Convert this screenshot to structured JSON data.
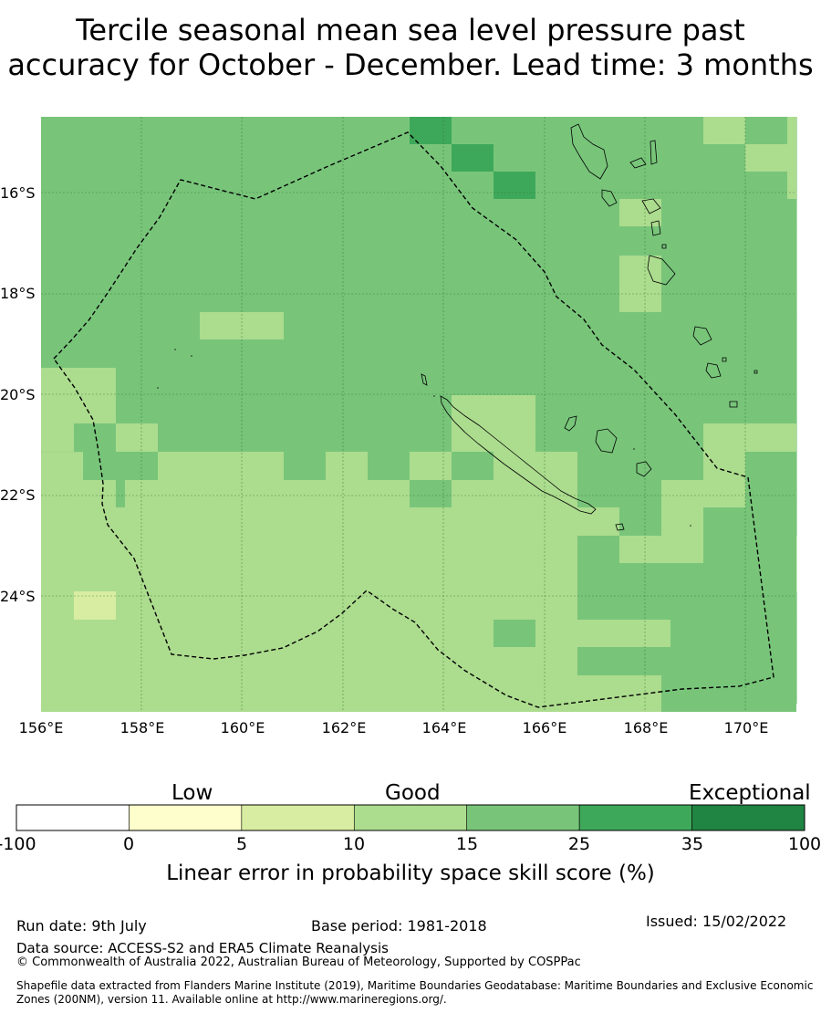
{
  "title": {
    "line1": "Tercile seasonal mean sea level pressure past",
    "line2": "accuracy for October - December. Lead time: 3 months"
  },
  "map": {
    "lat_labels": [
      "16°S",
      "18°S",
      "20°S",
      "22°S",
      "24°S"
    ],
    "lon_labels": [
      "156°E",
      "158°E",
      "160°E",
      "162°E",
      "164°E",
      "166°E",
      "168°E",
      "170°E"
    ]
  },
  "colorbar": {
    "categories": [
      "Low",
      "Good",
      "Exceptional"
    ],
    "ticks": [
      "-100",
      "0",
      "5",
      "10",
      "15",
      "25",
      "35",
      "100"
    ],
    "colors": [
      "#ffffff",
      "#fefecc",
      "#d8eda1",
      "#acdc8e",
      "#78c57a",
      "#3ea85a",
      "#208442"
    ],
    "title": "Linear error in probability space skill score (%)"
  },
  "footer": {
    "run_date": "Run date: 9th July",
    "base_period": "Base period: 1981-2018",
    "issued": "Issued: 15/02/2022",
    "data_source": "Data source: ACCESS-S2 and ERA5 Climate Reanalysis",
    "copyright": "© Commonwealth of Australia 2022, Australian Bureau of Meteorology, Supported by COSPPac",
    "shapefile": "Shapefile data extracted from Flanders Marine Institute (2019), Maritime Boundaries Geodatabase: Maritime Boundaries and Exclusive Economic Zones (200NM), version 11. Available online at http://www.marineregions.org/."
  }
}
